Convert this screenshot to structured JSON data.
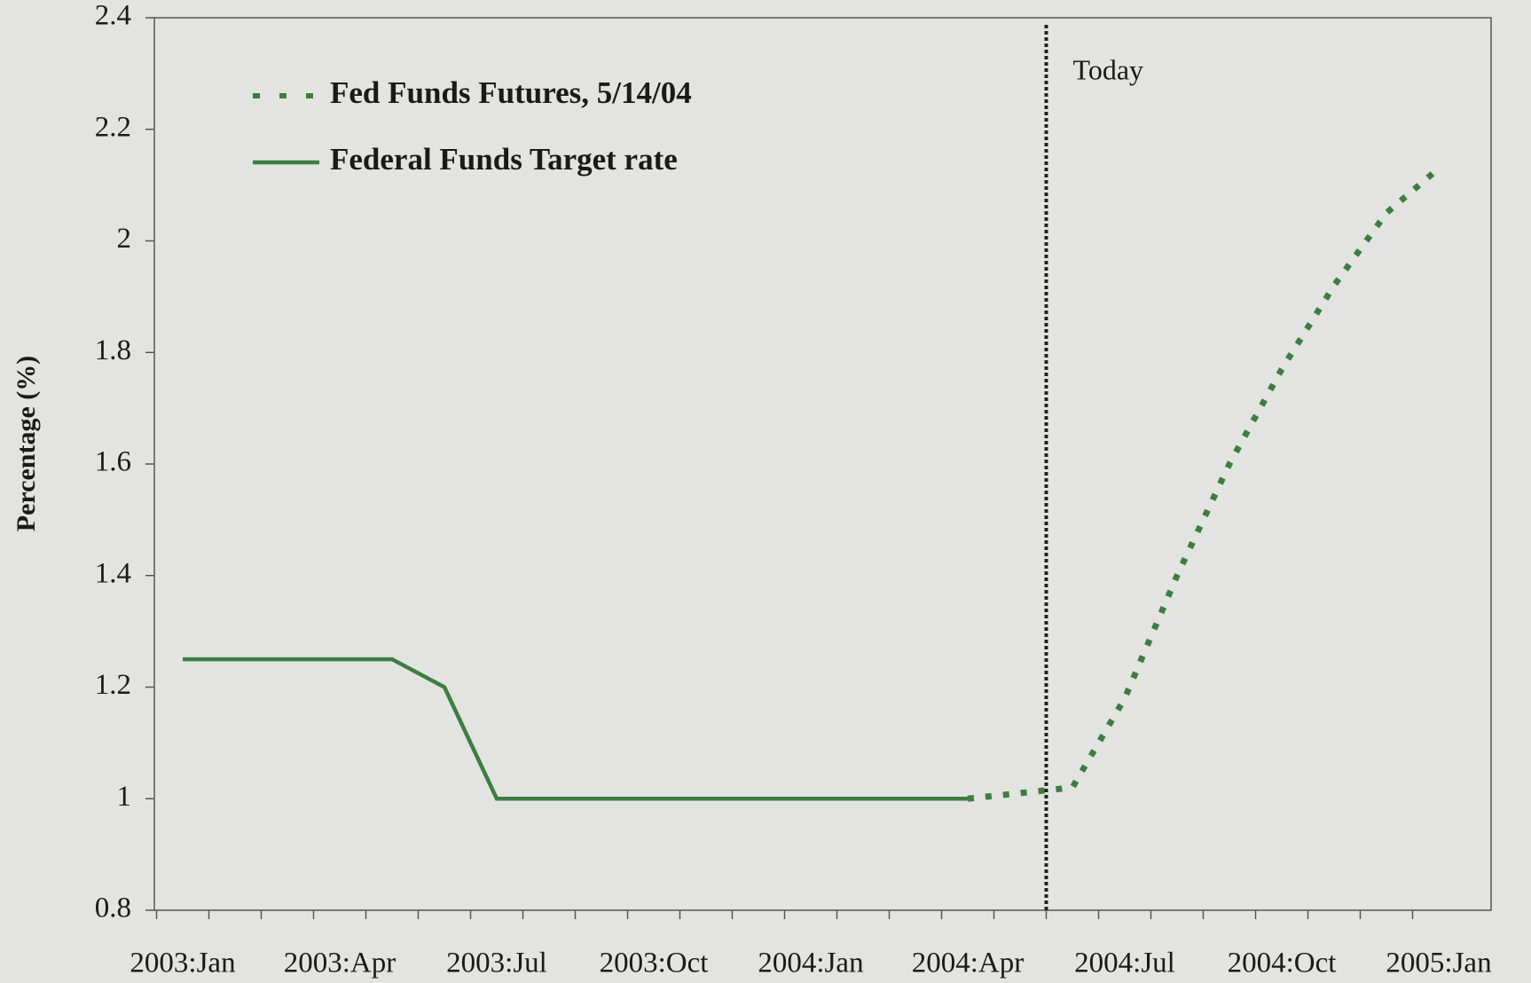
{
  "chart_data": {
    "type": "line",
    "y_label": "Percentage (%)",
    "categories": [
      "2003:Jan",
      null,
      null,
      "2003:Apr",
      null,
      null,
      "2003:Jul",
      null,
      null,
      "2003:Oct",
      null,
      null,
      "2004:Jan",
      null,
      null,
      "2004:Apr",
      null,
      null,
      "2004:Jul",
      null,
      null,
      "2004:Oct",
      null,
      null,
      "2005:Jan"
    ],
    "series": [
      {
        "name": "Fed Funds Futures, 5/14/04",
        "color": "#3e7d40",
        "style": "dotted",
        "values": [
          null,
          null,
          null,
          null,
          null,
          null,
          null,
          null,
          null,
          null,
          null,
          null,
          null,
          null,
          null,
          1.0,
          1.01,
          1.02,
          1.18,
          1.4,
          1.6,
          1.77,
          1.92,
          2.05,
          2.13
        ]
      },
      {
        "name": "Federal Funds Target rate",
        "color": "#3e7d40",
        "style": "solid",
        "values": [
          1.25,
          1.25,
          1.25,
          1.25,
          1.25,
          1.2,
          1.0,
          1.0,
          1.0,
          1.0,
          1.0,
          1.0,
          1.0,
          1.0,
          1.0,
          1.0,
          null,
          null,
          null,
          null,
          null,
          null,
          null,
          null,
          null
        ]
      }
    ],
    "annotations": [
      "Today"
    ],
    "ylim": [
      0.8,
      2.4
    ],
    "yticks": [
      0.8,
      1,
      1.2,
      1.4,
      1.6,
      1.8,
      2,
      2.2,
      2.4
    ],
    "grid": false
  }
}
